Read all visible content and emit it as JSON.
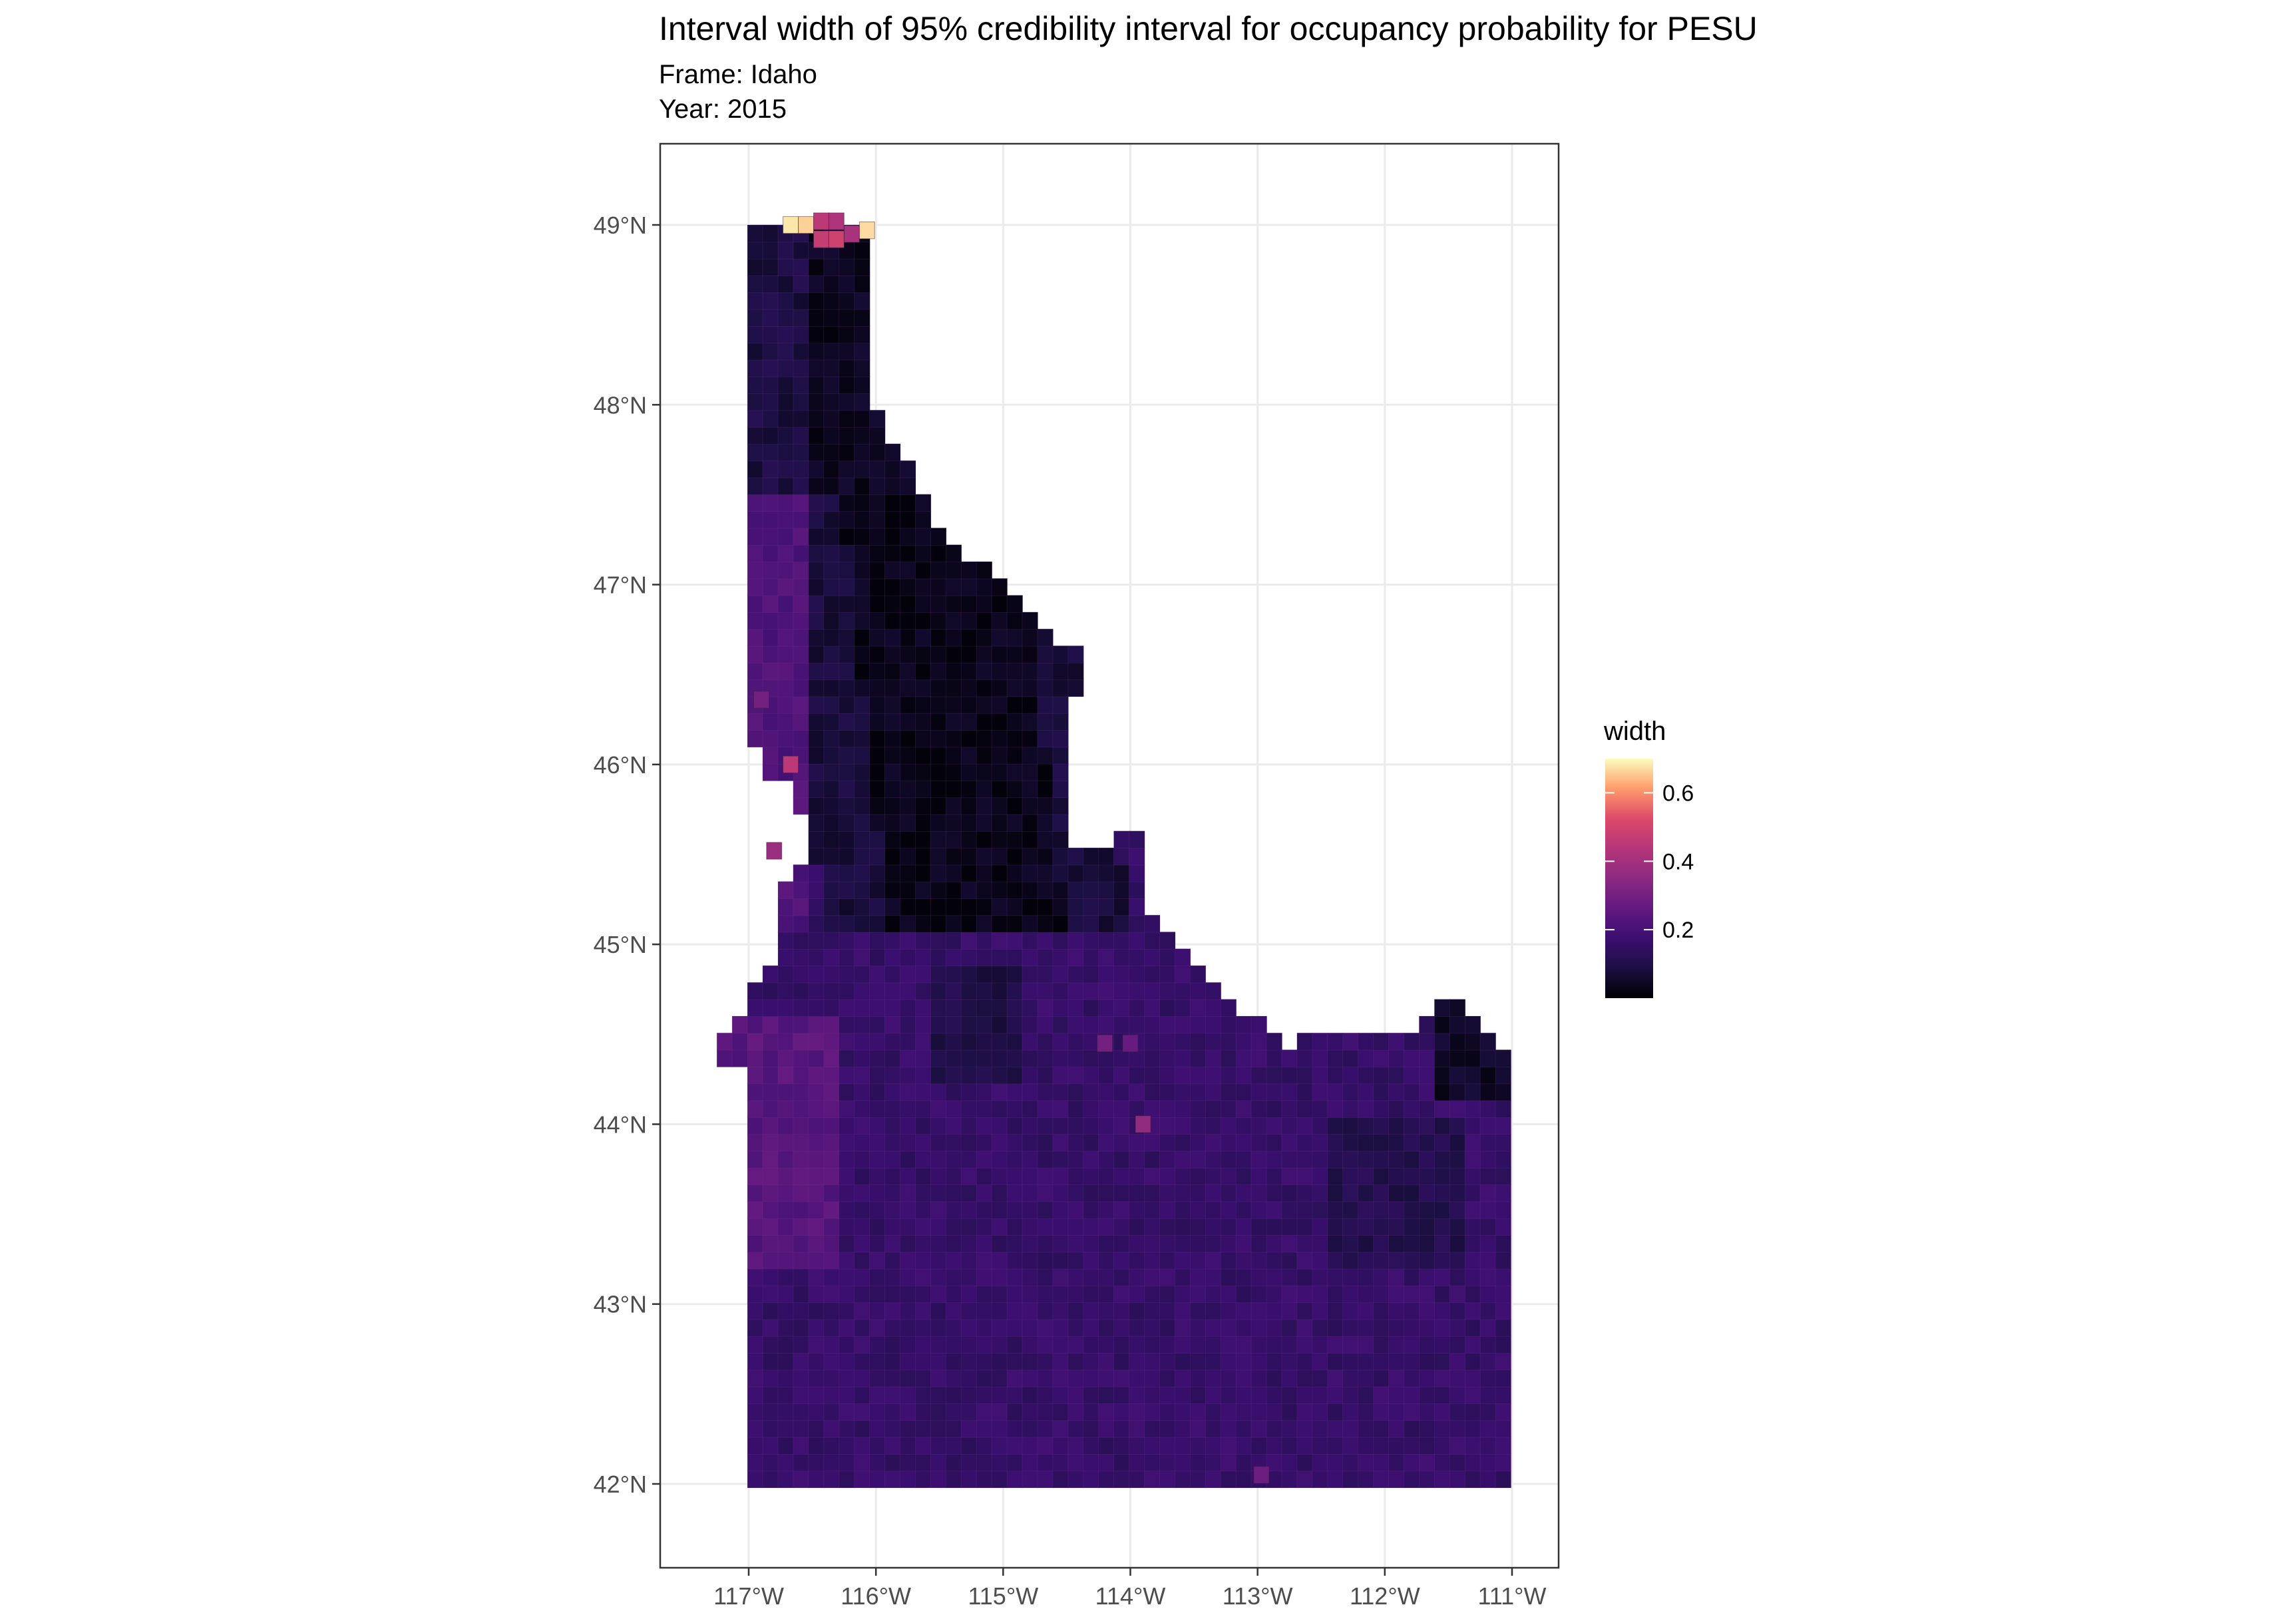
{
  "title": "Interval width of 95% credibility interval for occupancy probability for PESU",
  "subtitle_frame": "Frame: Idaho",
  "subtitle_year": "Year: 2015",
  "chart_data": {
    "type": "heatmap",
    "map_region": "Idaho",
    "x_ticks": [
      "117°W",
      "116°W",
      "115°W",
      "114°W",
      "113°W",
      "112°W",
      "111°W"
    ],
    "x_tick_values": [
      -117,
      -116,
      -115,
      -114,
      -113,
      -112,
      -111
    ],
    "y_ticks": [
      "42°N",
      "43°N",
      "44°N",
      "45°N",
      "46°N",
      "47°N",
      "48°N",
      "49°N"
    ],
    "y_tick_values": [
      42,
      43,
      44,
      45,
      46,
      47,
      48,
      49
    ],
    "xlim": [
      -117.72,
      -110.55
    ],
    "ylim": [
      41.53,
      49.45
    ],
    "grid": true,
    "color_scale": "magma",
    "legend": {
      "title": "width",
      "labels": [
        "0.6",
        "0.4",
        "0.2"
      ],
      "label_values": [
        0.6,
        0.4,
        0.2
      ],
      "range": [
        0.0,
        0.7
      ],
      "placement": "right"
    },
    "cell_size_deg": 0.12,
    "value_field": "width",
    "value_summary": {
      "northern_panhandle": 0.05,
      "central_idaho": 0.04,
      "southern_plain": 0.17,
      "western_edge": 0.25,
      "top_cells_max": 0.68
    },
    "highlight_cells": [
      {
        "lon": -116.67,
        "lat": 49.0,
        "width": 0.68
      },
      {
        "lon": -116.55,
        "lat": 49.0,
        "width": 0.66
      },
      {
        "lon": -116.43,
        "lat": 49.02,
        "width": 0.45
      },
      {
        "lon": -116.31,
        "lat": 49.02,
        "width": 0.42
      },
      {
        "lon": -116.43,
        "lat": 48.92,
        "width": 0.47
      },
      {
        "lon": -116.31,
        "lat": 48.92,
        "width": 0.49
      },
      {
        "lon": -116.07,
        "lat": 48.97,
        "width": 0.67
      },
      {
        "lon": -116.19,
        "lat": 48.95,
        "width": 0.41
      },
      {
        "lon": -116.67,
        "lat": 46.0,
        "width": 0.45
      },
      {
        "lon": -116.8,
        "lat": 45.52,
        "width": 0.38
      },
      {
        "lon": -116.9,
        "lat": 46.36,
        "width": 0.3
      },
      {
        "lon": -113.9,
        "lat": 44.0,
        "width": 0.36
      },
      {
        "lon": -114.2,
        "lat": 44.45,
        "width": 0.3
      },
      {
        "lon": -114.0,
        "lat": 44.45,
        "width": 0.27
      },
      {
        "lon": -112.97,
        "lat": 42.05,
        "width": 0.28
      }
    ]
  }
}
